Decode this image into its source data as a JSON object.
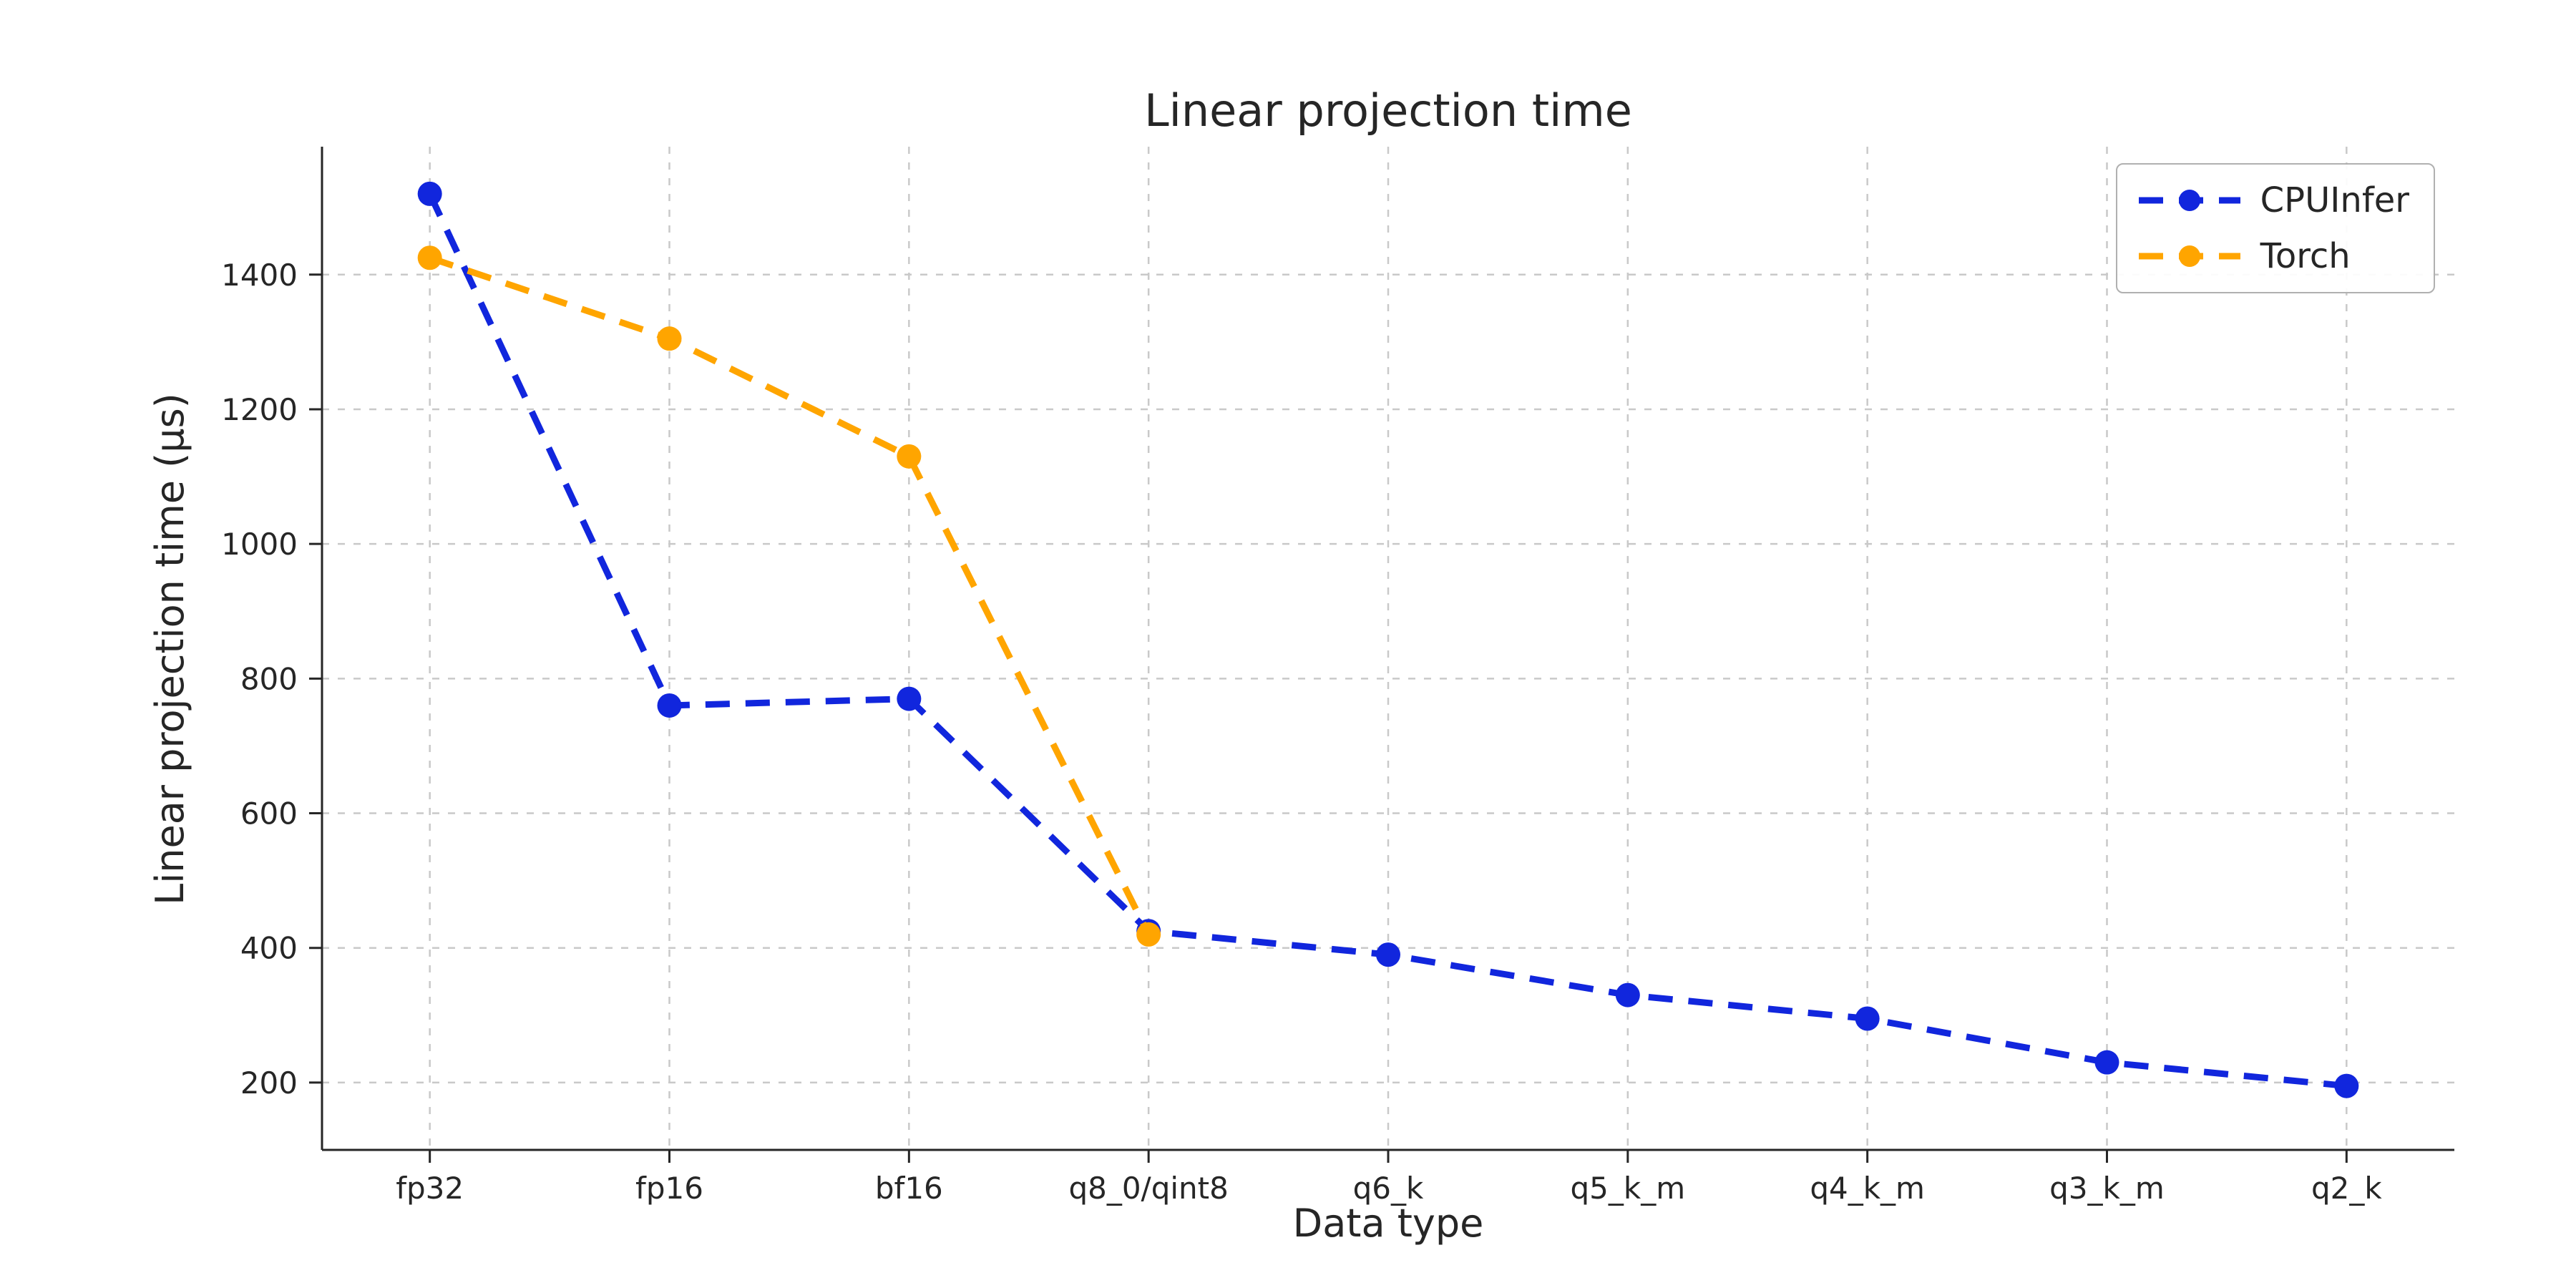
{
  "page": {
    "background_color": "#ffffff"
  },
  "chart_data": {
    "type": "line",
    "title": "Linear projection time",
    "xlabel": "Data type",
    "ylabel": "Linear projection time (µs)",
    "categories": [
      "fp32",
      "fp16",
      "bf16",
      "q8_0/qint8",
      "q6_k",
      "q5_k_m",
      "q4_k_m",
      "q3_k_m",
      "q2_k"
    ],
    "series": [
      {
        "name": "CPUInfer",
        "color": "#1126dd",
        "linestyle": "dashed",
        "marker": "circle",
        "values": [
          1520,
          760,
          770,
          425,
          390,
          330,
          295,
          230,
          195
        ]
      },
      {
        "name": "Torch",
        "color": "#ffa500",
        "linestyle": "dashed",
        "marker": "circle",
        "values": [
          1425,
          1305,
          1130,
          420
        ]
      }
    ],
    "yticks": [
      200,
      400,
      600,
      800,
      1000,
      1200,
      1400
    ],
    "ylim": [
      100,
      1590
    ],
    "grid": true,
    "grid_style": "dashed",
    "legend_position": "upper right",
    "legend_labels": [
      "CPUInfer",
      "Torch"
    ]
  }
}
